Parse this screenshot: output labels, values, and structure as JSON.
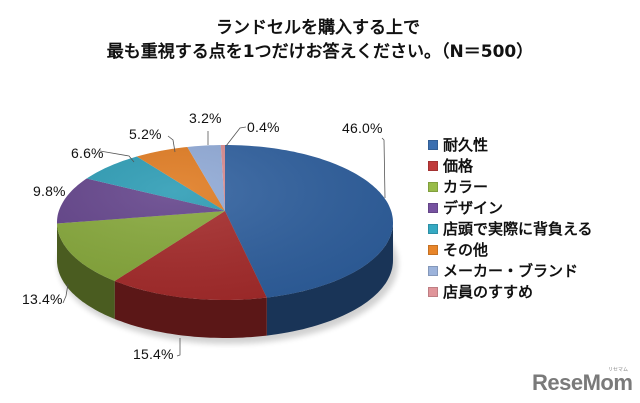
{
  "chart_data": {
    "type": "pie",
    "title": "ランドセルを購入する上で最も重視する点を1つだけお答えください。（N＝500）",
    "title_lines": [
      "ランドセルを購入する上で",
      "最も重視する点を1つだけお答えください。（N＝500）"
    ],
    "categories": [
      "耐久性",
      "価格",
      "カラー",
      "デザイン",
      "店頭で実際に背負える",
      "その他",
      "メーカー・ブランド",
      "店員のすすめ"
    ],
    "values": [
      46.0,
      15.4,
      13.4,
      9.8,
      6.6,
      5.2,
      3.2,
      0.4
    ],
    "labels": [
      "46.0%",
      "15.4%",
      "13.4%",
      "9.8%",
      "6.6%",
      "5.2%",
      "3.2%",
      "0.4%"
    ],
    "colors": [
      "#2e5f9e",
      "#a52a2a",
      "#86a83a",
      "#62428a",
      "#2a9bb4",
      "#e07a1f",
      "#8fa9d6",
      "#d98a8e"
    ],
    "legend_position": "right",
    "style": "3d-pie",
    "xlabel": "",
    "ylabel": ""
  },
  "legend": {
    "items": [
      {
        "label": "耐久性",
        "color": "#3b6fb0"
      },
      {
        "label": "価格",
        "color": "#c03a3a"
      },
      {
        "label": "カラー",
        "color": "#98bb48"
      },
      {
        "label": "デザイン",
        "color": "#7652a0"
      },
      {
        "label": "店頭で実際に背負える",
        "color": "#35a9c2"
      },
      {
        "label": "その他",
        "color": "#e8852a"
      },
      {
        "label": "メーカー・ブランド",
        "color": "#9cb3db"
      },
      {
        "label": "店員のすすめ",
        "color": "#e0959a"
      }
    ]
  },
  "watermark": {
    "text": "ReseMom",
    "sub": "リセマム"
  }
}
